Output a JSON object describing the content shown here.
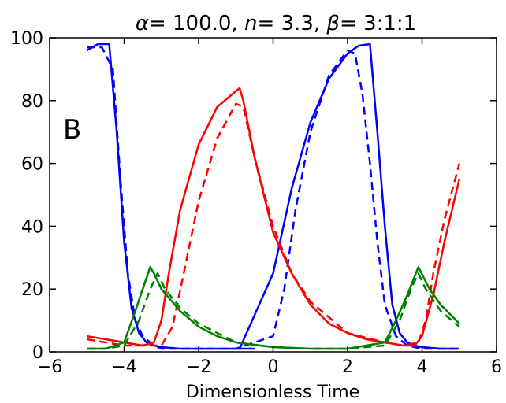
{
  "chart_data": {
    "type": "line",
    "title": "α= 100.0, n= 3.3, β= 3:1:1",
    "title_parts": [
      {
        "text": "α",
        "italic": true
      },
      {
        "text": "= 100.0, ",
        "italic": false
      },
      {
        "text": "n",
        "italic": true
      },
      {
        "text": "= 3.3, ",
        "italic": false
      },
      {
        "text": "β",
        "italic": true
      },
      {
        "text": "= 3:1:1",
        "italic": false
      }
    ],
    "panel_label": "B",
    "xlabel": "Dimensionless Time",
    "ylabel": "",
    "xlim": [
      -6,
      6
    ],
    "ylim": [
      0,
      100
    ],
    "xticks": [
      -6,
      -4,
      -2,
      0,
      2,
      4,
      6
    ],
    "xtick_labels": [
      "−6",
      "−4",
      "−2",
      "0",
      "2",
      "4",
      "6"
    ],
    "yticks": [
      0,
      20,
      40,
      60,
      80,
      100
    ],
    "ytick_labels": [
      "0",
      "20",
      "40",
      "60",
      "80",
      "100"
    ],
    "grid": false,
    "series": [
      {
        "color": "#0000ff",
        "style": "solid",
        "x": [
          -5.0,
          -4.7,
          -4.4,
          -4.2,
          -4.0,
          -3.8,
          -3.6,
          -3.4,
          -3.2,
          -3.0,
          -2.5,
          -2.0,
          -1.5,
          -1.0,
          -0.5,
          -0.9,
          0.0,
          0.5,
          1.0,
          1.5,
          2.0,
          2.3,
          2.6,
          2.8,
          3.0,
          3.2,
          3.4,
          3.6,
          3.8,
          4.0,
          4.5,
          5.0
        ],
        "y": [
          96,
          98,
          98,
          70,
          35,
          14,
          6,
          3,
          2,
          1.5,
          1,
          1,
          1,
          1,
          1,
          1,
          25,
          52,
          73,
          87,
          95,
          97.5,
          98,
          70,
          40,
          15,
          6,
          3,
          2,
          1.5,
          1,
          1
        ]
      },
      {
        "color": "#0000ff",
        "style": "dashed",
        "x": [
          -5.0,
          -4.6,
          -4.3,
          -4.1,
          -3.9,
          -3.7,
          -3.5,
          -3.2,
          -3.0,
          -2.0,
          -1.0,
          0.0,
          0.3,
          0.6,
          1.0,
          1.5,
          2.0,
          2.2,
          2.4,
          2.6,
          2.8,
          3.0,
          3.3,
          3.6,
          4.0,
          4.5,
          5.0
        ],
        "y": [
          97,
          97,
          90,
          55,
          25,
          10,
          5,
          2,
          1,
          1,
          1,
          5,
          20,
          45,
          70,
          88,
          96,
          95,
          82,
          60,
          35,
          15,
          5,
          2,
          1,
          1,
          1
        ]
      },
      {
        "color": "#ff0000",
        "style": "solid",
        "x": [
          -5.0,
          -4.5,
          -4.0,
          -3.5,
          -3.2,
          -3.0,
          -2.8,
          -2.5,
          -2.0,
          -1.5,
          -1.0,
          -0.9,
          -0.8,
          -0.5,
          0.0,
          0.5,
          1.0,
          1.5,
          2.0,
          2.5,
          3.0,
          3.5,
          3.8,
          4.0,
          4.3,
          4.6,
          5.0
        ],
        "y": [
          5,
          4,
          3,
          2,
          3,
          10,
          25,
          45,
          66,
          78,
          83,
          84,
          80,
          62,
          38,
          25,
          15,
          9,
          6,
          4,
          3,
          2,
          2,
          5,
          18,
          35,
          55
        ]
      },
      {
        "color": "#ff0000",
        "style": "dashed",
        "x": [
          -5.0,
          -4.5,
          -4.0,
          -3.5,
          -3.0,
          -2.7,
          -2.4,
          -2.0,
          -1.5,
          -1.0,
          -0.8,
          -0.5,
          0.0,
          0.5,
          1.0,
          2.0,
          3.0,
          3.5,
          3.9,
          4.1,
          4.3,
          4.6,
          5.0
        ],
        "y": [
          4,
          3,
          2,
          2,
          2,
          8,
          25,
          48,
          68,
          79,
          78,
          62,
          40,
          25,
          16,
          6,
          3,
          2,
          3,
          10,
          25,
          42,
          60
        ]
      },
      {
        "color": "#008000",
        "style": "solid",
        "x": [
          -5.0,
          -4.5,
          -4.0,
          -3.7,
          -3.5,
          -3.3,
          -3.2,
          -3.0,
          -2.5,
          -2.0,
          -1.5,
          -1.0,
          0.0,
          1.0,
          2.0,
          3.0,
          3.3,
          3.6,
          3.9,
          4.2,
          4.5,
          5.0
        ],
        "y": [
          1,
          1,
          3,
          13,
          20,
          27,
          25,
          20,
          13,
          8,
          5,
          3,
          1.5,
          1,
          1,
          3,
          10,
          18,
          27,
          20,
          15,
          9
        ]
      },
      {
        "color": "#008000",
        "style": "dashed",
        "x": [
          -5.0,
          -4.5,
          -4.0,
          -3.6,
          -3.3,
          -3.1,
          -2.9,
          -2.5,
          -2.0,
          -1.0,
          0.0,
          1.0,
          2.0,
          3.0,
          3.4,
          3.7,
          3.9,
          4.1,
          4.5,
          5.0
        ],
        "y": [
          1,
          1,
          2,
          10,
          20,
          25,
          20,
          14,
          9,
          3,
          1.5,
          1,
          1,
          2,
          10,
          20,
          25,
          20,
          13,
          8
        ]
      }
    ]
  }
}
